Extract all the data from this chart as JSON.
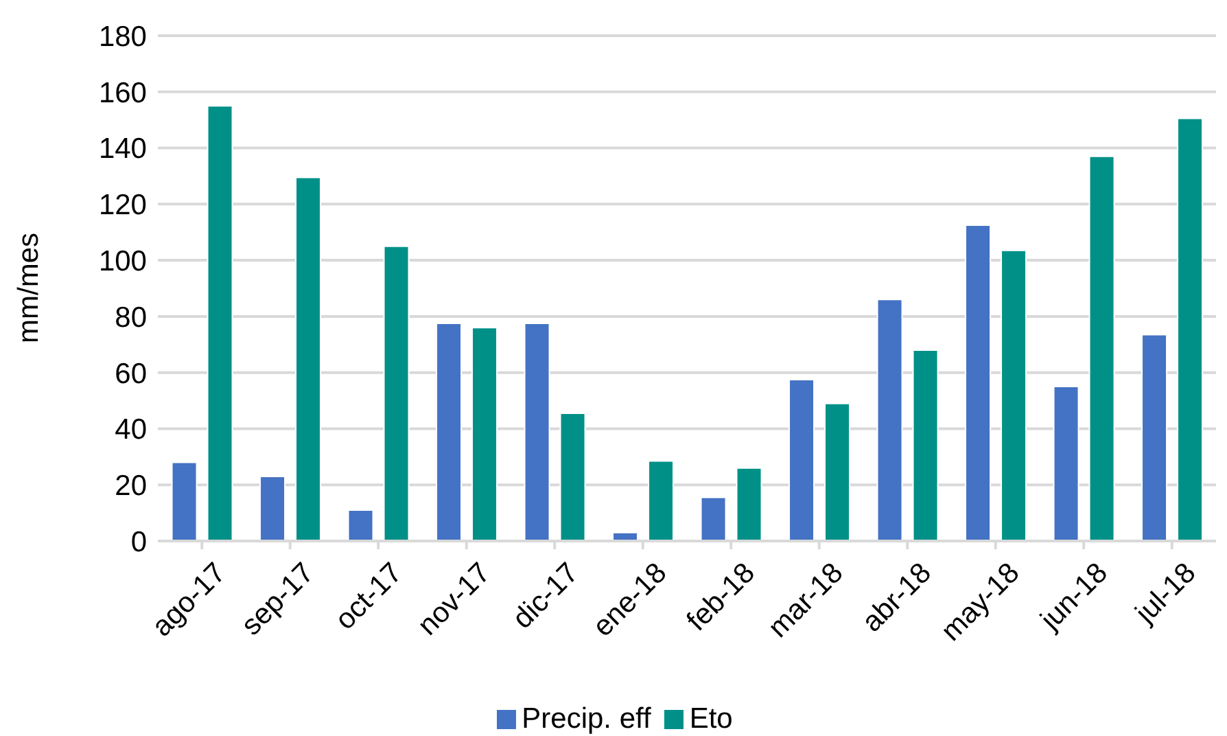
{
  "chart_data": {
    "type": "bar",
    "ylabel": "mm/mes",
    "categories": [
      "ago-17",
      "sep-17",
      "oct-17",
      "nov-17",
      "dic-17",
      "ene-18",
      "feb-18",
      "mar-18",
      "abr-18",
      "may-18",
      "jun-18",
      "jul-18"
    ],
    "series": [
      {
        "name": "Precip. eff",
        "color": "#4472c4",
        "values": [
          28,
          23,
          11,
          77.5,
          77.5,
          3,
          15.5,
          57.5,
          86,
          112.5,
          55,
          73.5
        ]
      },
      {
        "name": "Eto",
        "color": "#009088",
        "values": [
          155,
          129.5,
          105,
          76,
          45.5,
          28.5,
          26,
          49,
          68,
          103.5,
          137,
          150.5
        ]
      }
    ],
    "ylim": [
      0,
      180
    ],
    "yticks": [
      0,
      20,
      40,
      60,
      80,
      100,
      120,
      140,
      160,
      180
    ],
    "grid": "y",
    "legend": "bottom"
  }
}
